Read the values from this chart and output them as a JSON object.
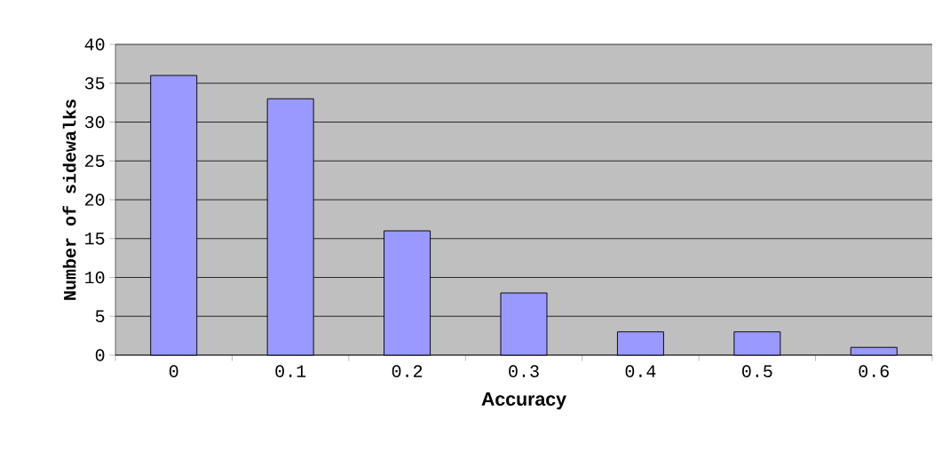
{
  "chart_data": {
    "type": "bar",
    "xlabel": "Accuracy",
    "ylabel": "Number of sidewalks",
    "categories": [
      "0",
      "0.1",
      "0.2",
      "0.3",
      "0.4",
      "0.5",
      "0.6"
    ],
    "values": [
      36,
      33,
      16,
      8,
      3,
      3,
      1
    ],
    "color": "#9999ff",
    "ylim": [
      0,
      40
    ],
    "yticks": [
      0,
      5,
      10,
      15,
      20,
      25,
      30,
      35,
      40
    ],
    "grid": "y"
  }
}
